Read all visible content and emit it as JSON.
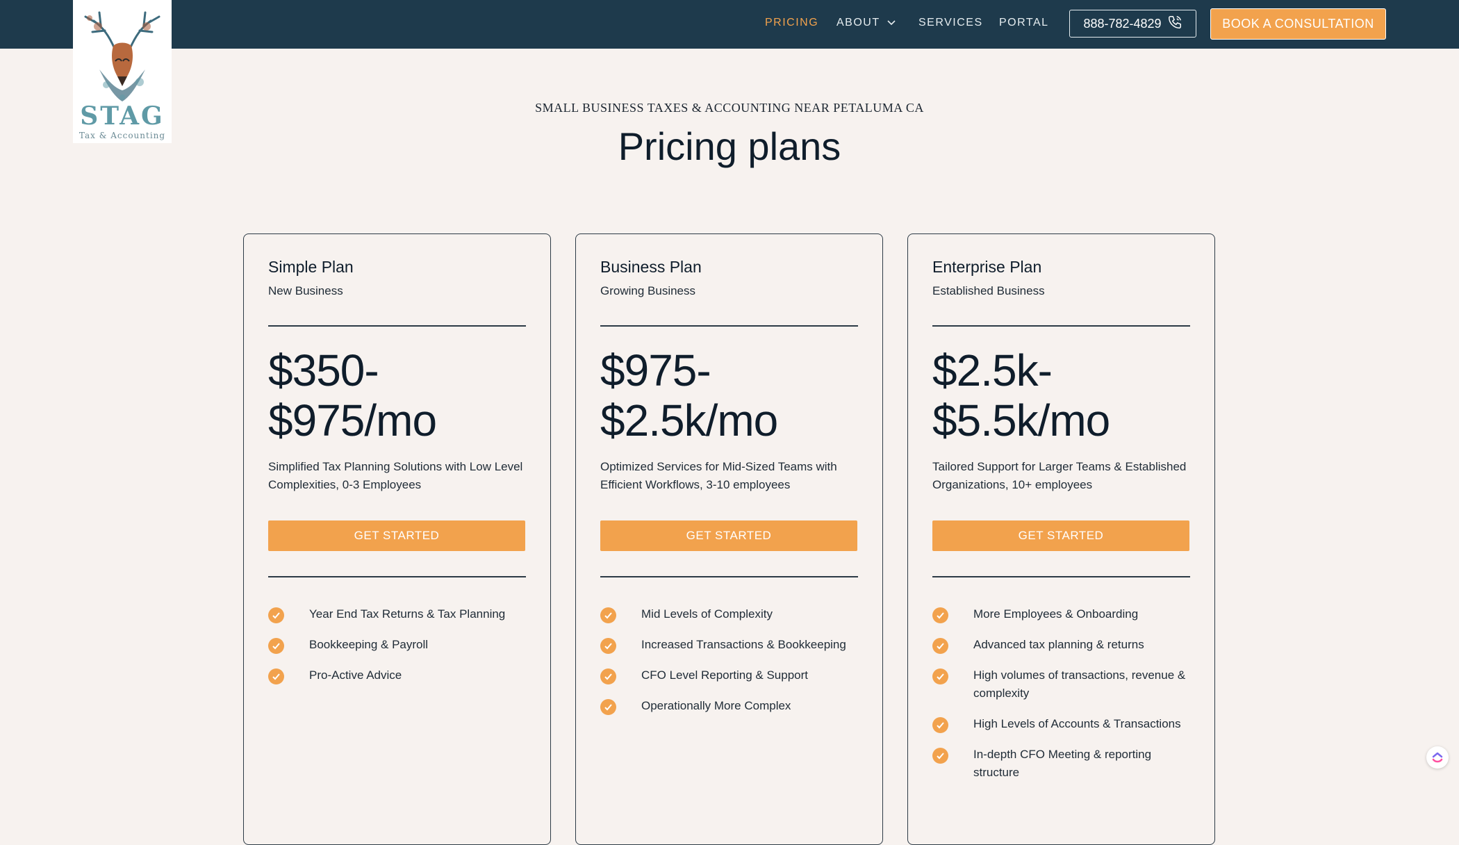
{
  "brand": {
    "name": "STAG",
    "tagline": "Tax & Accounting",
    "colors": {
      "nav_bg": "#1e3a4c",
      "accent": "#f2a24d",
      "page_bg": "#f7f2ef",
      "logo_teal": "#5f9aa6"
    }
  },
  "nav": {
    "items": [
      {
        "label": "PRICING",
        "active": true
      },
      {
        "label": "ABOUT",
        "has_dropdown": true
      },
      {
        "label": "SERVICES"
      },
      {
        "label": "PORTAL"
      }
    ],
    "phone": "888-782-4829",
    "phone_icon": "phone-icon",
    "cta": "BOOK A CONSULTATION"
  },
  "hero": {
    "eyebrow": "SMALL BUSINESS TAXES & ACCOUNTING NEAR PETALUMA CA",
    "title": "Pricing plans"
  },
  "plans": [
    {
      "name": "Simple Plan",
      "tagline": "New Business",
      "price_line1": "$350-",
      "price_line2": "$975/mo",
      "description": "Simplified Tax Planning Solutions with Low Level Complexities, 0-3 Employees",
      "cta": "GET STARTED",
      "features": [
        "Year End Tax Returns & Tax Planning",
        "Bookkeeping & Payroll",
        "Pro-Active Advice"
      ]
    },
    {
      "name": "Business Plan",
      "tagline": "Growing Business",
      "price_line1": "$975-",
      "price_line2": "$2.5k/mo",
      "description": "Optimized Services for Mid-Sized Teams with Efficient Workflows, 3-10 employees",
      "cta": "GET STARTED",
      "features": [
        "Mid Levels of Complexity",
        "Increased Transactions & Bookkeeping",
        "CFO Level Reporting & Support",
        "Operationally More Complex"
      ]
    },
    {
      "name": "Enterprise Plan",
      "tagline": "Established Business",
      "price_line1": "$2.5k-",
      "price_line2": "$5.5k/mo",
      "description": "Tailored Support for Larger Teams & Established Organizations, 10+ employees",
      "cta": "GET STARTED",
      "features": [
        "More Employees & Onboarding",
        "Advanced tax planning & returns",
        "High volumes of transactions, revenue & complexity",
        "High Levels of Accounts & Transactions",
        "In-depth CFO Meeting & reporting structure"
      ]
    }
  ]
}
